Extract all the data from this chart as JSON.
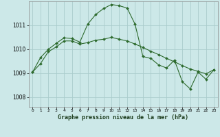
{
  "title": "Graphe pression niveau de la mer (hPa)",
  "background_color": "#cce8e8",
  "grid_color": "#aacccc",
  "line_color": "#2d6a2d",
  "marker_color": "#2d6a2d",
  "xlim": [
    -0.5,
    23.5
  ],
  "ylim": [
    1007.6,
    1012.0
  ],
  "yticks": [
    1008,
    1009,
    1010,
    1011
  ],
  "xticks": [
    0,
    1,
    2,
    3,
    4,
    5,
    6,
    7,
    8,
    9,
    10,
    11,
    12,
    13,
    14,
    15,
    16,
    17,
    18,
    19,
    20,
    21,
    22,
    23
  ],
  "series1_x": [
    0,
    1,
    2,
    3,
    4,
    5,
    6,
    7,
    8,
    9,
    10,
    11,
    12,
    13,
    14,
    15,
    16,
    17,
    18,
    19,
    20,
    21,
    22,
    23
  ],
  "series1_y": [
    1009.05,
    1009.65,
    1010.0,
    1010.25,
    1010.48,
    1010.45,
    1010.3,
    1011.05,
    1011.45,
    1011.7,
    1011.87,
    1011.82,
    1011.72,
    1011.05,
    1009.7,
    1009.62,
    1009.35,
    1009.22,
    1009.55,
    1008.65,
    1008.35,
    1009.05,
    1008.75,
    1009.15
  ],
  "series2_x": [
    0,
    1,
    2,
    3,
    4,
    5,
    6,
    7,
    8,
    9,
    10,
    11,
    12,
    13,
    14,
    15,
    16,
    17,
    18,
    19,
    20,
    21,
    22,
    23
  ],
  "series2_y": [
    1009.05,
    1009.4,
    1009.9,
    1010.1,
    1010.35,
    1010.35,
    1010.22,
    1010.28,
    1010.38,
    1010.42,
    1010.5,
    1010.42,
    1010.35,
    1010.22,
    1010.08,
    1009.92,
    1009.78,
    1009.62,
    1009.48,
    1009.32,
    1009.18,
    1009.08,
    1008.98,
    1009.15
  ]
}
